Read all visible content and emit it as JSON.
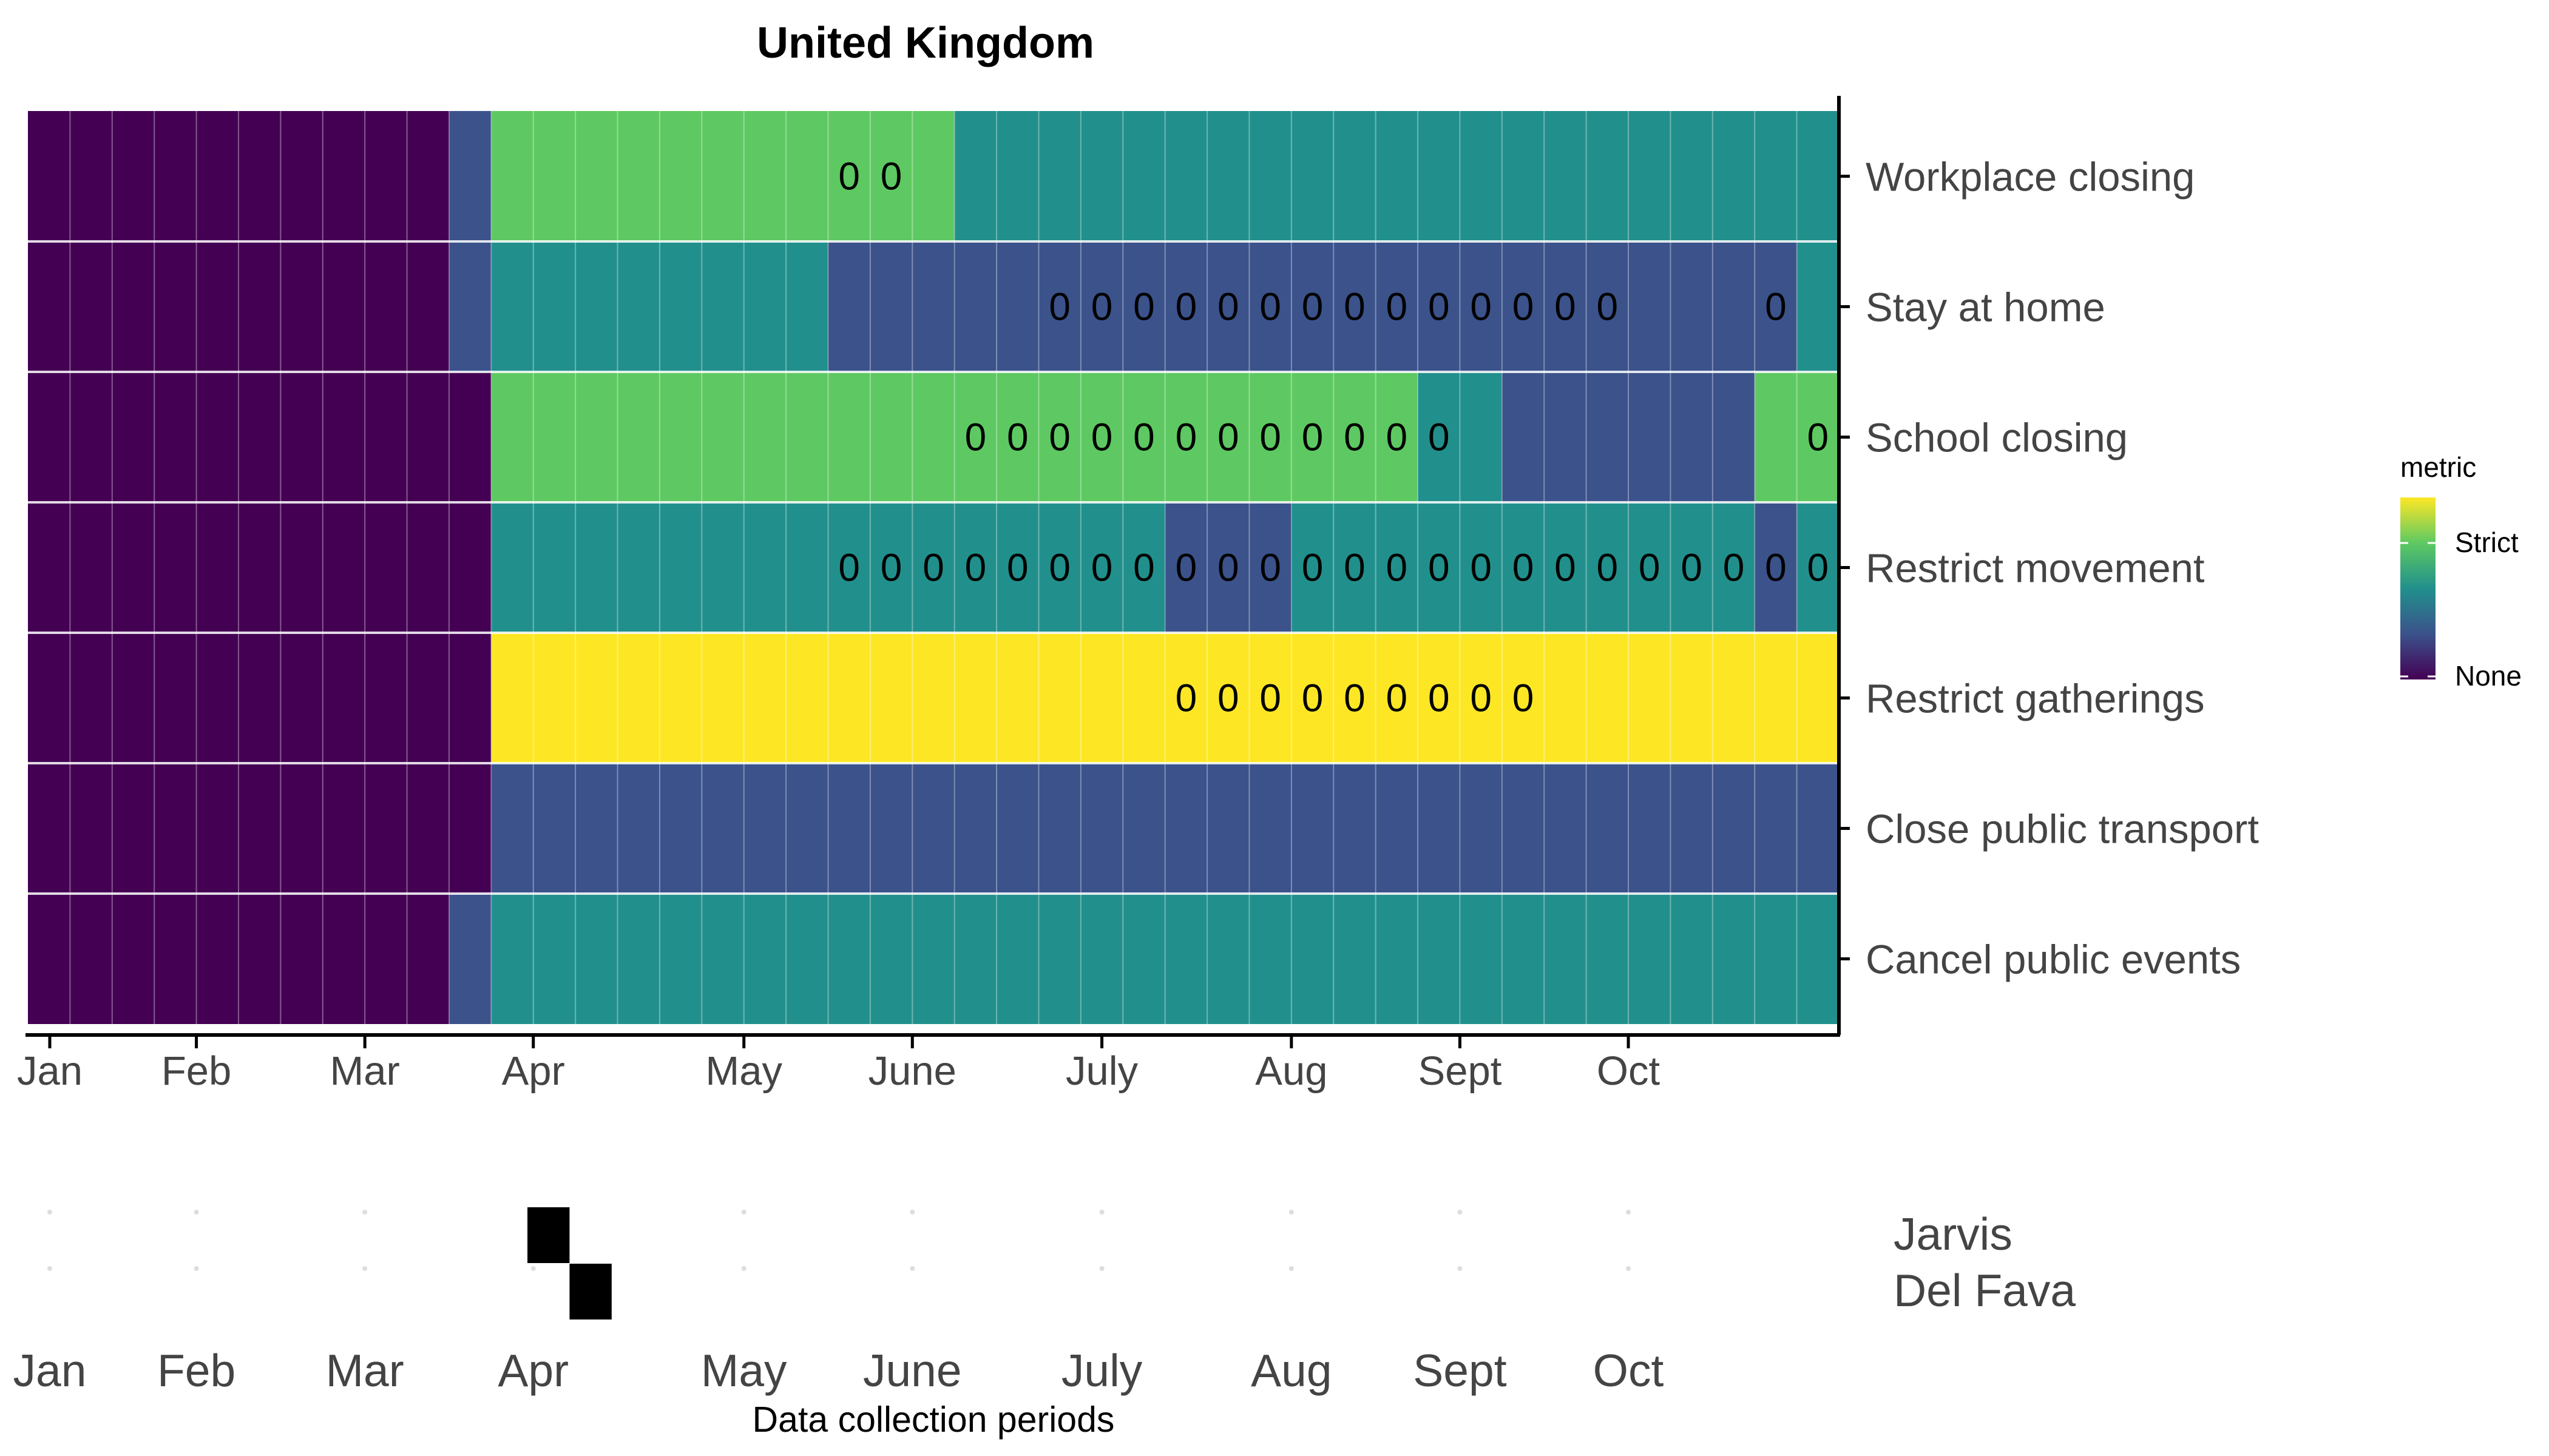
{
  "chart_data": [
    {
      "type": "heatmap",
      "title": "United Kingdom",
      "xlabel": "",
      "ylabel": "",
      "x_ticks": [
        "Jan",
        "Feb",
        "Mar",
        "Apr",
        "May",
        "June",
        "July",
        "Aug",
        "Sept",
        "Oct"
      ],
      "x_tick_week": [
        0,
        4,
        8,
        12,
        17,
        21,
        25.5,
        30,
        34,
        38
      ],
      "week_count": 43,
      "color_scale": "viridis",
      "legend": {
        "title": "metric",
        "labels": [
          "Strict",
          "None"
        ],
        "position": "right"
      },
      "level_colors": {
        "0": "#440154",
        "1": "#3b528b",
        "2": "#21908c",
        "3": "#5ec962",
        "4": "#fde725"
      },
      "grid": true,
      "rows": [
        {
          "label": "Workplace closing",
          "segments": [
            [
              0,
              10,
              0
            ],
            [
              10,
              11,
              1
            ],
            [
              11,
              22,
              3
            ],
            [
              22,
              43,
              2
            ]
          ],
          "zero_marks": [
            19,
            20
          ]
        },
        {
          "label": "Stay at home",
          "segments": [
            [
              0,
              10,
              0
            ],
            [
              10,
              11,
              1
            ],
            [
              11,
              19,
              2
            ],
            [
              19,
              42,
              1
            ],
            [
              42,
              43,
              2
            ]
          ],
          "zero_marks": [
            24,
            25,
            26,
            27,
            28,
            29,
            30,
            31,
            32,
            33,
            34,
            35,
            36,
            37,
            41
          ]
        },
        {
          "label": "School closing",
          "segments": [
            [
              0,
              11,
              0
            ],
            [
              11,
              33,
              3
            ],
            [
              33,
              35,
              2
            ],
            [
              35,
              41,
              1
            ],
            [
              41,
              43,
              3
            ]
          ],
          "zero_marks": [
            22,
            23,
            24,
            25,
            26,
            27,
            28,
            29,
            30,
            31,
            32,
            33,
            42
          ]
        },
        {
          "label": "Restrict movement",
          "segments": [
            [
              0,
              11,
              0
            ],
            [
              11,
              27,
              2
            ],
            [
              27,
              30,
              1
            ],
            [
              30,
              41,
              2
            ],
            [
              41,
              42,
              1
            ],
            [
              42,
              43,
              2
            ]
          ],
          "zero_marks": [
            19,
            20,
            21,
            22,
            23,
            24,
            25,
            26,
            27,
            28,
            29,
            30,
            31,
            32,
            33,
            34,
            35,
            36,
            37,
            38,
            39,
            40,
            41,
            42
          ]
        },
        {
          "label": "Restrict gatherings",
          "segments": [
            [
              0,
              11,
              0
            ],
            [
              11,
              43,
              4
            ]
          ],
          "zero_marks": [
            27,
            28,
            29,
            30,
            31,
            32,
            33,
            34,
            35
          ]
        },
        {
          "label": "Close public transport",
          "segments": [
            [
              0,
              11,
              0
            ],
            [
              11,
              43,
              1
            ]
          ],
          "zero_marks": []
        },
        {
          "label": "Cancel public events",
          "segments": [
            [
              0,
              10,
              0
            ],
            [
              10,
              11,
              1
            ],
            [
              11,
              43,
              2
            ]
          ],
          "zero_marks": []
        }
      ],
      "zero_label": "0"
    },
    {
      "type": "heatmap",
      "caption": "Data collection periods",
      "x_ticks": [
        "Jan",
        "Feb",
        "Mar",
        "Apr",
        "May",
        "June",
        "July",
        "Aug",
        "Sept",
        "Oct"
      ],
      "rows": [
        {
          "label": "Jarvis",
          "weeks": [
            12
          ]
        },
        {
          "label": "Del Fava",
          "weeks": [
            13
          ]
        }
      ],
      "cell_color": "#000000"
    }
  ]
}
